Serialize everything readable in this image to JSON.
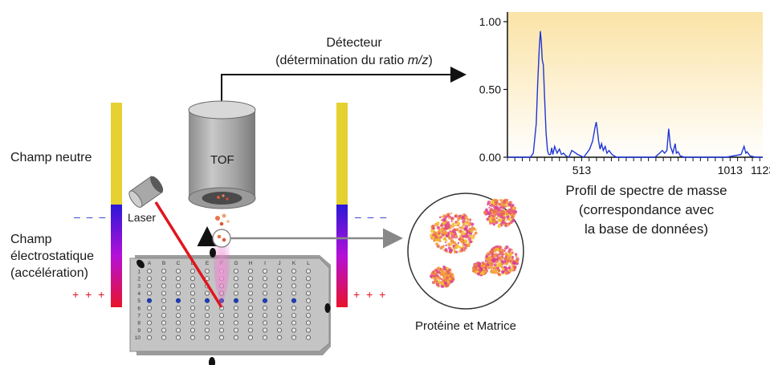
{
  "detector": {
    "title": "Détecteur",
    "subtitle_prefix": "(détermination du ratio ",
    "subtitle_italic": "m/z",
    "subtitle_suffix": ")"
  },
  "tof_label": "TOF",
  "laser_label": "Laser",
  "left_labels": {
    "champ_neutre": "Champ neutre",
    "champ_line1": "Champ",
    "champ_line2": "électrostatique",
    "champ_line3": "(accélération)",
    "minus_marks": "– – –",
    "plus_marks": "+ + +"
  },
  "right_field": {
    "minus_marks": "– – –",
    "plus_marks": "+ + +"
  },
  "spectrum_caption": {
    "line1": "Profil de spectre de masse",
    "line2": "(correspondance avec",
    "line3": "la base de données)"
  },
  "protein_caption": "Protéine et Matrice",
  "plate": {
    "columns": [
      "A",
      "B",
      "C",
      "D",
      "E",
      "F",
      "G",
      "H",
      "I",
      "J",
      "K",
      "L"
    ],
    "rows": [
      "1",
      "2",
      "3",
      "4",
      "5",
      "6",
      "7",
      "8",
      "9",
      "10"
    ],
    "highlight_row": "5",
    "target_column": "F"
  },
  "colors": {
    "laser_beam": "#e0151d",
    "spectrum_line": "#2036d6",
    "spectrum_bg_top": "#fbe3a6",
    "neutral_field": "#e5d12f",
    "field_top": "#2a18d8",
    "field_bottom": "#e8132a",
    "marks_blue": "#2a3cc8",
    "marks_red": "#e01424",
    "well_blue": "#1c3fbf"
  },
  "chart_data": {
    "type": "line",
    "title": "",
    "xlabel": "Profil de spectre de masse",
    "ylabel": "",
    "xlim": [
      263,
      1123
    ],
    "ylim": [
      0,
      1
    ],
    "x_tick_labels": [
      "513",
      "1013",
      "1123"
    ],
    "y_tick_labels": [
      "1.00",
      "0.50",
      "0.00"
    ],
    "series": [
      {
        "x": [
          263,
          340,
          350,
          360,
          365,
          370,
          374,
          377,
          380,
          384,
          388,
          393,
          398,
          402,
          408,
          412,
          416,
          422,
          430,
          438,
          445,
          452,
          460,
          470,
          480,
          500,
          520,
          540,
          550,
          558,
          562,
          566,
          570,
          575,
          580,
          586,
          592,
          598,
          605,
          615,
          630,
          700,
          760,
          785,
          792,
          800,
          806,
          812,
          820,
          828,
          832,
          838,
          845,
          860,
          900,
          1000,
          1050,
          1060,
          1066,
          1070,
          1080,
          1100,
          1123
        ],
        "y": [
          0.0,
          0.0,
          0.03,
          0.25,
          0.55,
          0.8,
          0.93,
          0.85,
          0.72,
          0.68,
          0.45,
          0.18,
          0.05,
          0.02,
          0.02,
          0.07,
          0.02,
          0.08,
          0.03,
          0.06,
          0.02,
          0.03,
          0.01,
          0.0,
          0.05,
          0.02,
          0.0,
          0.06,
          0.12,
          0.22,
          0.26,
          0.2,
          0.12,
          0.06,
          0.1,
          0.05,
          0.08,
          0.03,
          0.05,
          0.02,
          0.0,
          0.0,
          0.0,
          0.05,
          0.03,
          0.05,
          0.21,
          0.08,
          0.03,
          0.1,
          0.03,
          0.04,
          0.01,
          0.0,
          0.0,
          0.0,
          0.02,
          0.08,
          0.03,
          0.04,
          0.01,
          0.0,
          0.0
        ]
      }
    ]
  }
}
